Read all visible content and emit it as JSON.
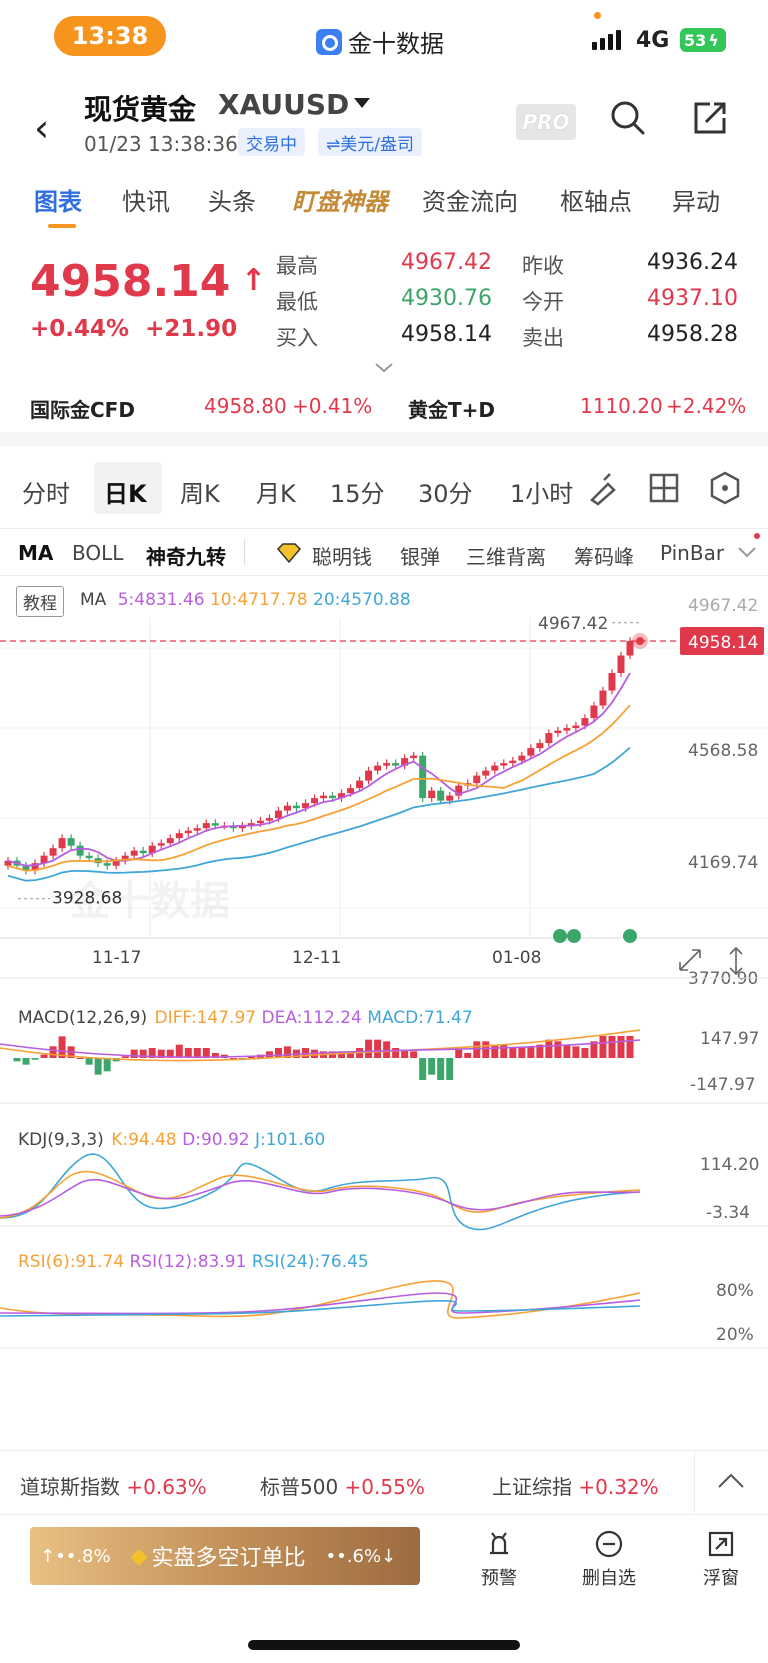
{
  "status": {
    "time": "13:38",
    "app_name": "金十数据",
    "network": "4G",
    "battery": "53"
  },
  "header": {
    "title": "现货黄金",
    "code": "XAUUSD",
    "datetime": "01/23 13:38:36",
    "trading_status": "交易中",
    "unit": "⇌美元/盎司",
    "pro_label": "PRO"
  },
  "tabs": [
    "图表",
    "快讯",
    "头条",
    "盯盘神器",
    "资金流向",
    "枢轴点",
    "异动"
  ],
  "quote": {
    "price": "4958.14",
    "change_pct": "+0.44%",
    "change_abs": "+21.90",
    "high_label": "最高",
    "high": "4967.42",
    "low_label": "最低",
    "low": "4930.76",
    "bid_label": "买入",
    "bid": "4958.14",
    "prev_close_label": "昨收",
    "prev_close": "4936.24",
    "open_label": "今开",
    "open": "4937.10",
    "ask_label": "卖出",
    "ask": "4958.28"
  },
  "related": {
    "cfd_label": "国际金CFD",
    "cfd_price": "4958.80",
    "cfd_pct": "+0.41%",
    "td_label": "黄金T+D",
    "td_price": "1110.20",
    "td_pct": "+2.42%"
  },
  "periods": [
    "分时",
    "日K",
    "周K",
    "月K",
    "15分",
    "30分",
    "1小时"
  ],
  "indicators": [
    "MA",
    "BOLL",
    "神奇九转",
    "聪明钱",
    "银弹",
    "三维背离",
    "筹码峰",
    "PinBar"
  ],
  "main_chart": {
    "tutorial_label": "教程",
    "ma_label": "MA",
    "ma5": "5:4831.46",
    "ma10": "10:4717.78",
    "ma20": "20:4570.88",
    "y_labels": [
      "4967.42",
      "4568.58",
      "4169.74",
      "3770.90"
    ],
    "last_price_tag": "4958.14",
    "high_marker": "4967.42",
    "low_marker": "3928.68",
    "x_labels": [
      "11-17",
      "12-11",
      "01-08"
    ],
    "watermark": "金十数据",
    "colors": {
      "up": "#e0394b",
      "down": "#3ba56a",
      "ma5": "#b85de0",
      "ma10": "#f7a033",
      "ma20": "#3fa6d8"
    }
  },
  "macd": {
    "label": "MACD(12,26,9)",
    "diff": "DIFF:147.97",
    "dea": "DEA:112.24",
    "macd": "MACD:71.47",
    "y_top": "147.97",
    "y_bottom": "-147.97"
  },
  "kdj": {
    "label": "KDJ(9,3,3)",
    "k": "K:94.48",
    "d": "D:90.92",
    "j": "J:101.60",
    "y_top": "114.20",
    "y_bottom": "-3.34"
  },
  "rsi": {
    "label": "RSI(6):91.74",
    "rsi12": "RSI(12):83.91",
    "rsi24": "RSI(24):76.45",
    "y_top": "80%",
    "y_bottom": "20%"
  },
  "tickers": [
    {
      "name": "道琼斯指数",
      "change": "+0.63%"
    },
    {
      "name": "标普500",
      "change": "+0.55%"
    },
    {
      "name": "上证综指",
      "change": "+0.32%"
    }
  ],
  "footer": {
    "left_pct": "↑••.8%",
    "gold_label": "实盘多空订单比",
    "right_pct": "••.6%↓",
    "alert_label": "预警",
    "remove_label": "删自选",
    "float_label": "浮窗"
  }
}
